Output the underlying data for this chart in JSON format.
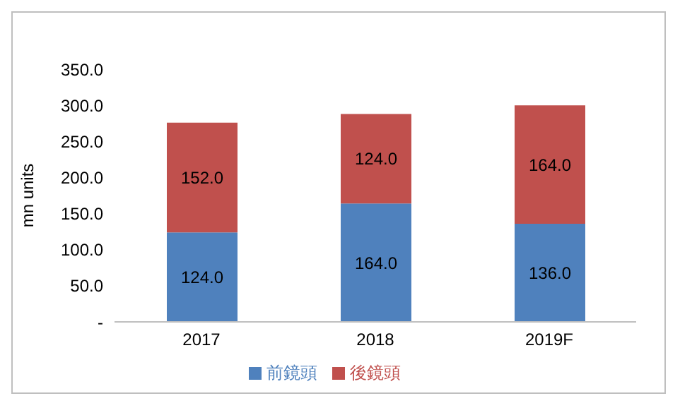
{
  "chart_data": {
    "type": "bar",
    "stacked": true,
    "ylabel": "mn units",
    "categories": [
      "2017",
      "2018",
      "2019F"
    ],
    "series": [
      {
        "name": "前鏡頭",
        "color": "#4f81bd",
        "values": [
          124,
          164,
          136
        ],
        "value_labels": [
          "124.0",
          "164.0",
          "136.0"
        ]
      },
      {
        "name": "後鏡頭",
        "color": "#c0504d",
        "values": [
          152,
          124,
          164
        ],
        "value_labels": [
          "152.0",
          "124.0",
          "164.0"
        ]
      }
    ],
    "ylim": [
      0,
      350
    ],
    "yticks": [
      {
        "value": 0,
        "label": "-"
      },
      {
        "value": 50,
        "label": "50.0"
      },
      {
        "value": 100,
        "label": "100.0"
      },
      {
        "value": 150,
        "label": "150.0"
      },
      {
        "value": 200,
        "label": "200.0"
      },
      {
        "value": 250,
        "label": "250.0"
      },
      {
        "value": 300,
        "label": "300.0"
      },
      {
        "value": 350,
        "label": "350.0"
      }
    ],
    "grid": false,
    "legend": "bottom"
  }
}
